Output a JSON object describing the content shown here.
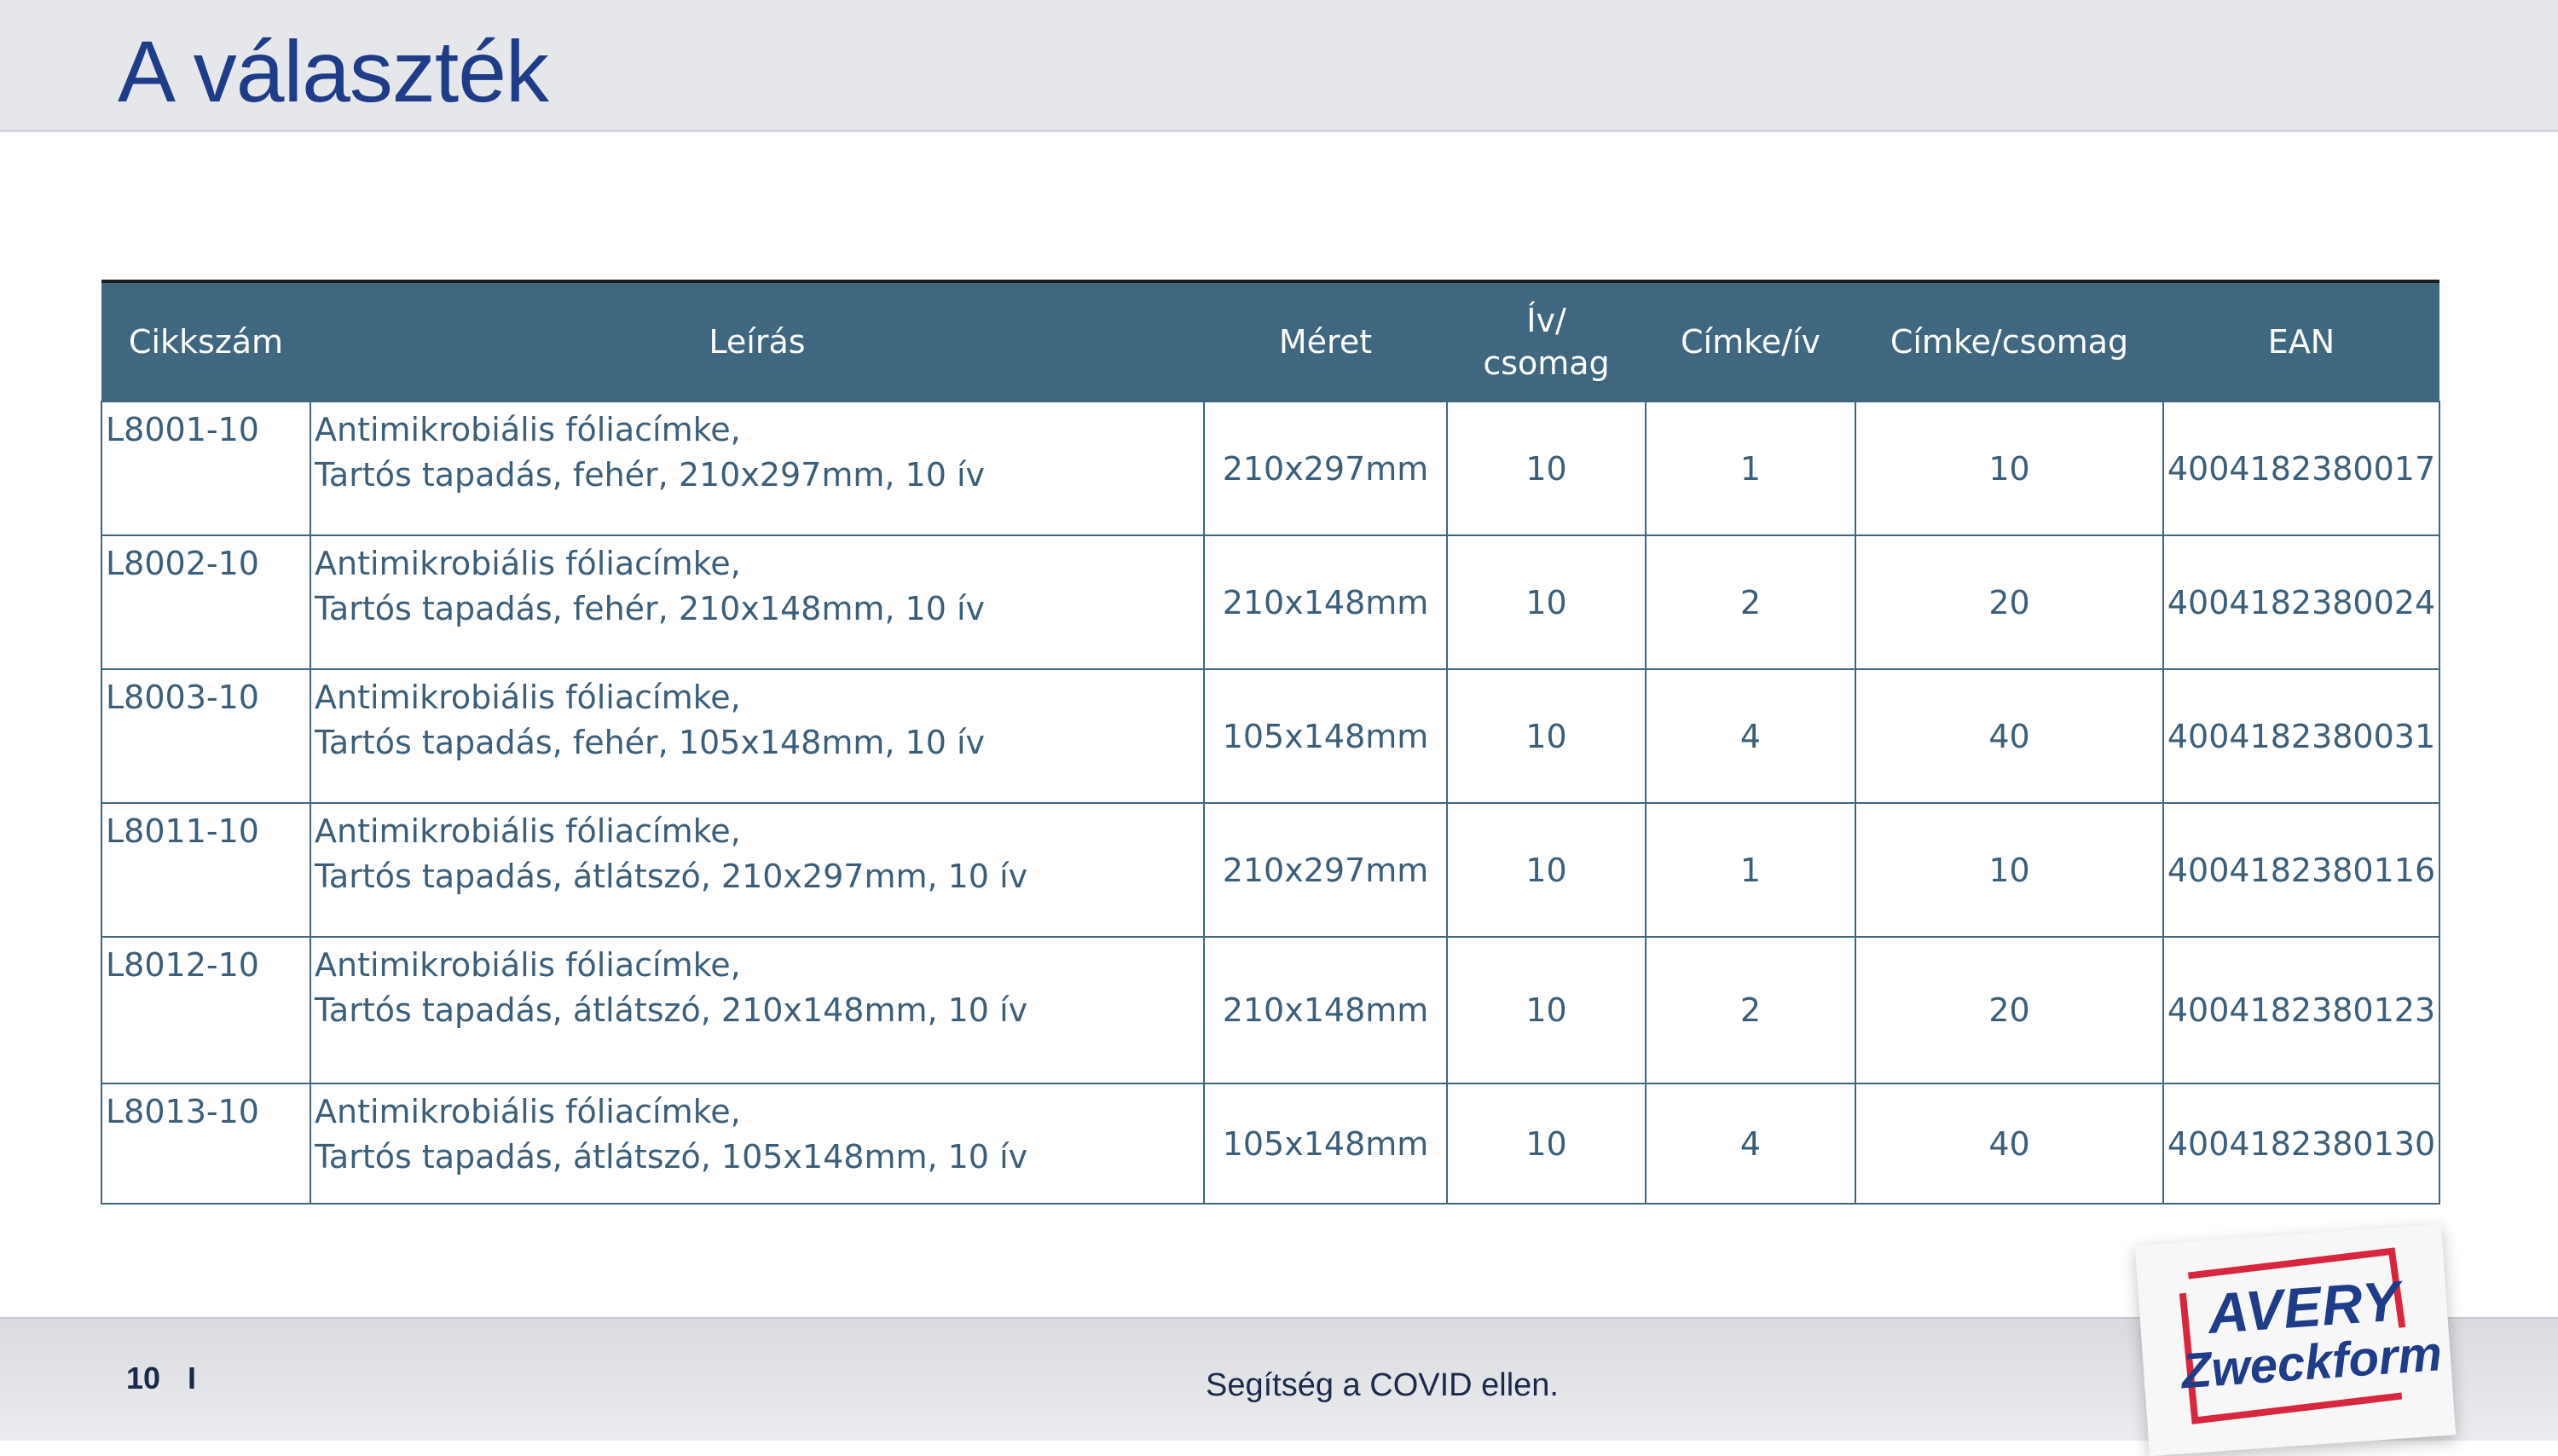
{
  "page": {
    "title": "A választék",
    "page_number": "10",
    "separator": "I",
    "footer_text": "Segítség a COVID ellen."
  },
  "brand": {
    "line1": "AVERY",
    "line2": "Zweckform",
    "color": "#1f3c88",
    "accent": "#d7263d"
  },
  "table": {
    "headers": {
      "code": "Cikkszám",
      "desc": "Leírás",
      "size": "Méret",
      "sheets_line1": "Ív/",
      "sheets_line2": "csomag",
      "labels_per_sheet": "Címke/ív",
      "labels_per_pack": "Címke/csomag",
      "ean": "EAN"
    },
    "rows": [
      {
        "code": "L8001-10",
        "desc1": "Antimikrobiális fóliacímke,",
        "desc2": "Tartós tapadás, fehér, 210x297mm, 10 ív",
        "size": "210x297mm",
        "sheets": "10",
        "per_sheet": "1",
        "per_pack": "10",
        "ean": "4004182380017"
      },
      {
        "code": "L8002-10",
        "desc1": "Antimikrobiális fóliacímke,",
        "desc2": "Tartós tapadás, fehér, 210x148mm, 10 ív",
        "size": "210x148mm",
        "sheets": "10",
        "per_sheet": "2",
        "per_pack": "20",
        "ean": "4004182380024"
      },
      {
        "code": "L8003-10",
        "desc1": "Antimikrobiális fóliacímke,",
        "desc2": "Tartós tapadás, fehér, 105x148mm, 10 ív",
        "size": "105x148mm",
        "sheets": "10",
        "per_sheet": "4",
        "per_pack": "40",
        "ean": "4004182380031"
      },
      {
        "code": "L8011-10",
        "desc1": "Antimikrobiális fóliacímke,",
        "desc2": "Tartós tapadás, átlátszó, 210x297mm, 10 ív",
        "size": "210x297mm",
        "sheets": "10",
        "per_sheet": "1",
        "per_pack": "10",
        "ean": "4004182380116"
      },
      {
        "code": "L8012-10",
        "desc1": "Antimikrobiális fóliacímke,",
        "desc2": "Tartós tapadás, átlátszó, 210x148mm, 10 ív",
        "size": "210x148mm",
        "sheets": "10",
        "per_sheet": "2",
        "per_pack": "20",
        "ean": "4004182380123"
      },
      {
        "code": "L8013-10",
        "desc1": "Antimikrobiális fóliacímke,",
        "desc2": "Tartós tapadás, átlátszó, 105x148mm, 10 ív",
        "size": "105x148mm",
        "sheets": "10",
        "per_sheet": "4",
        "per_pack": "40",
        "ean": "4004182380130"
      }
    ]
  }
}
